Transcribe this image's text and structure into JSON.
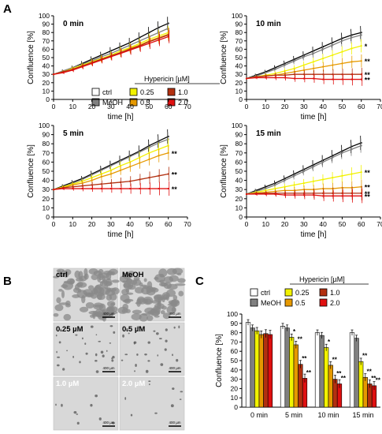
{
  "panels": {
    "A": "A",
    "B": "B",
    "C": "C"
  },
  "colors": {
    "ctrl": "#ffffff",
    "MeOH": "#808080",
    "c025": "#f2f200",
    "c05": "#e69900",
    "c10": "#b23010",
    "c20": "#e01010",
    "line_ctrl": "#000000",
    "line_meoh": "#7f7f7f"
  },
  "legend": {
    "title": "Hypericin [µM]",
    "items": [
      {
        "key": "ctrl",
        "label": "ctrl"
      },
      {
        "key": "MeOH",
        "label": "MeOH"
      },
      {
        "key": "c025",
        "label": "0.25"
      },
      {
        "key": "c05",
        "label": "0.5"
      },
      {
        "key": "c10",
        "label": "1.0"
      },
      {
        "key": "c20",
        "label": "2.0"
      }
    ]
  },
  "micrographs": [
    {
      "label": "ctrl",
      "scale": "400 µm"
    },
    {
      "label": "MeOH",
      "scale": "400 µm"
    },
    {
      "label": "0.25 µM",
      "scale": "400 µm"
    },
    {
      "label": "0.5 µM",
      "scale": "400 µm"
    },
    {
      "label": "1.0 µM",
      "scale": "400 µm"
    },
    {
      "label": "2.0 µM",
      "scale": "400 µm"
    }
  ],
  "chart_data": [
    {
      "type": "line",
      "title": "0 min",
      "xlabel": "time [h]",
      "ylabel": "Confluence [%]",
      "xlim": [
        0,
        70
      ],
      "ylim": [
        0,
        100
      ],
      "x": [
        0,
        5,
        10,
        15,
        20,
        25,
        30,
        35,
        40,
        45,
        50,
        55,
        60
      ],
      "series": [
        {
          "key": "ctrl",
          "values": [
            30,
            34,
            38,
            43,
            48,
            53,
            58,
            63,
            68,
            74,
            80,
            86,
            91
          ]
        },
        {
          "key": "MeOH",
          "values": [
            30,
            34,
            38,
            42,
            46,
            51,
            55,
            60,
            65,
            70,
            75,
            80,
            85
          ]
        },
        {
          "key": "c025",
          "values": [
            30,
            33,
            37,
            41,
            45,
            49,
            53,
            58,
            62,
            67,
            72,
            76,
            80
          ]
        },
        {
          "key": "c05",
          "values": [
            30,
            33,
            36,
            40,
            44,
            48,
            52,
            56,
            61,
            65,
            70,
            74,
            78
          ]
        },
        {
          "key": "c10",
          "values": [
            30,
            33,
            36,
            40,
            44,
            48,
            52,
            56,
            60,
            64,
            69,
            73,
            77
          ]
        },
        {
          "key": "c20",
          "values": [
            30,
            32,
            35,
            39,
            43,
            47,
            51,
            55,
            59,
            63,
            67,
            71,
            75
          ]
        }
      ]
    },
    {
      "type": "line",
      "title": "10 min",
      "xlabel": "time [h]",
      "ylabel": "Confluence [%]",
      "xlim": [
        0,
        70
      ],
      "ylim": [
        0,
        100
      ],
      "x": [
        0,
        5,
        10,
        15,
        20,
        25,
        30,
        35,
        40,
        45,
        50,
        55,
        60
      ],
      "series": [
        {
          "key": "ctrl",
          "values": [
            25,
            29,
            33,
            38,
            43,
            48,
            53,
            58,
            63,
            68,
            73,
            77,
            80
          ]
        },
        {
          "key": "MeOH",
          "values": [
            25,
            28,
            32,
            36,
            41,
            46,
            51,
            55,
            60,
            65,
            70,
            74,
            77
          ]
        },
        {
          "key": "c025",
          "values": [
            25,
            27,
            29,
            31,
            34,
            37,
            41,
            45,
            49,
            53,
            57,
            61,
            64
          ]
        },
        {
          "key": "c05",
          "values": [
            25,
            27,
            28,
            29,
            31,
            33,
            35,
            37,
            39,
            41,
            43,
            45,
            46
          ]
        },
        {
          "key": "c10",
          "values": [
            25,
            27,
            28,
            29,
            29,
            30,
            30,
            30,
            30,
            30,
            30,
            30,
            30
          ]
        },
        {
          "key": "c20",
          "values": [
            25,
            26,
            26,
            26,
            26,
            25,
            25,
            25,
            24,
            24,
            24,
            24,
            24
          ]
        }
      ],
      "annotations": [
        {
          "text": "*",
          "series": "c025"
        },
        {
          "text": "**",
          "series": "c05"
        },
        {
          "text": "**",
          "series": "c10"
        },
        {
          "text": "**",
          "series": "c20"
        }
      ]
    },
    {
      "type": "line",
      "title": "5 min",
      "xlabel": "time [h]",
      "ylabel": "Confluence [%]",
      "xlim": [
        0,
        70
      ],
      "ylim": [
        0,
        100
      ],
      "x": [
        0,
        5,
        10,
        15,
        20,
        25,
        30,
        35,
        40,
        45,
        50,
        55,
        60
      ],
      "series": [
        {
          "key": "ctrl",
          "values": [
            30,
            34,
            38,
            42,
            47,
            52,
            57,
            62,
            67,
            72,
            78,
            83,
            88
          ]
        },
        {
          "key": "MeOH",
          "values": [
            30,
            33,
            37,
            41,
            46,
            51,
            56,
            61,
            66,
            71,
            76,
            81,
            85
          ]
        },
        {
          "key": "c025",
          "values": [
            30,
            33,
            36,
            39,
            43,
            47,
            51,
            56,
            60,
            65,
            70,
            74,
            78
          ]
        },
        {
          "key": "c05",
          "values": [
            30,
            32,
            35,
            37,
            40,
            44,
            47,
            51,
            55,
            59,
            63,
            67,
            70
          ]
        },
        {
          "key": "c10",
          "values": [
            30,
            32,
            33,
            34,
            35,
            36,
            37,
            38,
            39,
            41,
            43,
            45,
            47
          ]
        },
        {
          "key": "c20",
          "values": [
            30,
            31,
            31,
            31,
            31,
            31,
            31,
            31,
            31,
            31,
            31,
            31,
            31
          ]
        }
      ],
      "annotations": [
        {
          "text": "**",
          "series": "c05"
        },
        {
          "text": "**",
          "series": "c10"
        },
        {
          "text": "**",
          "series": "c20"
        }
      ]
    },
    {
      "type": "line",
      "title": "15 min",
      "xlabel": "time [h]",
      "ylabel": "Confluence [%]",
      "xlim": [
        0,
        70
      ],
      "ylim": [
        0,
        100
      ],
      "x": [
        0,
        5,
        10,
        15,
        20,
        25,
        30,
        35,
        40,
        45,
        50,
        55,
        60
      ],
      "series": [
        {
          "key": "ctrl",
          "values": [
            25,
            29,
            33,
            37,
            42,
            47,
            52,
            57,
            62,
            67,
            72,
            77,
            81
          ]
        },
        {
          "key": "MeOH",
          "values": [
            25,
            28,
            31,
            35,
            40,
            45,
            50,
            55,
            60,
            65,
            70,
            74,
            78
          ]
        },
        {
          "key": "c025",
          "values": [
            25,
            27,
            29,
            31,
            33,
            35,
            37,
            39,
            41,
            43,
            45,
            47,
            49
          ]
        },
        {
          "key": "c05",
          "values": [
            25,
            26,
            27,
            28,
            29,
            29,
            30,
            30,
            31,
            31,
            32,
            32,
            33
          ]
        },
        {
          "key": "c10",
          "values": [
            25,
            26,
            26,
            26,
            26,
            26,
            26,
            26,
            26,
            26,
            26,
            26,
            26
          ]
        },
        {
          "key": "c20",
          "values": [
            25,
            25,
            25,
            25,
            24,
            24,
            24,
            24,
            23,
            23,
            23,
            23,
            23
          ]
        }
      ],
      "annotations": [
        {
          "text": "**",
          "series": "c025"
        },
        {
          "text": "**",
          "series": "c05"
        },
        {
          "text": "**",
          "series": "c10"
        },
        {
          "text": "**",
          "series": "c20"
        }
      ]
    },
    {
      "type": "bar",
      "xlabel": "",
      "ylabel": "Confluence [%]",
      "ylim": [
        0,
        100
      ],
      "categories": [
        "0 min",
        "5 min",
        "10 min",
        "15 min"
      ],
      "series": [
        {
          "key": "ctrl",
          "values": [
            91,
            87,
            80,
            80
          ]
        },
        {
          "key": "MeOH",
          "values": [
            85,
            85,
            77,
            74
          ]
        },
        {
          "key": "c025",
          "values": [
            82,
            75,
            64,
            49
          ]
        },
        {
          "key": "c05",
          "values": [
            78,
            67,
            45,
            32
          ]
        },
        {
          "key": "c10",
          "values": [
            79,
            46,
            30,
            25
          ]
        },
        {
          "key": "c20",
          "values": [
            78,
            31,
            25,
            23
          ]
        }
      ],
      "annotations": [
        {
          "category": 1,
          "series": 2,
          "text": "*"
        },
        {
          "category": 1,
          "series": 3,
          "text": "**"
        },
        {
          "category": 1,
          "series": 4,
          "text": "**"
        },
        {
          "category": 1,
          "series": 5,
          "text": "**"
        },
        {
          "category": 2,
          "series": 2,
          "text": "*"
        },
        {
          "category": 2,
          "series": 3,
          "text": "**"
        },
        {
          "category": 2,
          "series": 4,
          "text": "**"
        },
        {
          "category": 2,
          "series": 5,
          "text": "**"
        },
        {
          "category": 3,
          "series": 2,
          "text": "**"
        },
        {
          "category": 3,
          "series": 3,
          "text": "**"
        },
        {
          "category": 3,
          "series": 4,
          "text": "**"
        },
        {
          "category": 3,
          "series": 5,
          "text": "**"
        }
      ]
    }
  ]
}
